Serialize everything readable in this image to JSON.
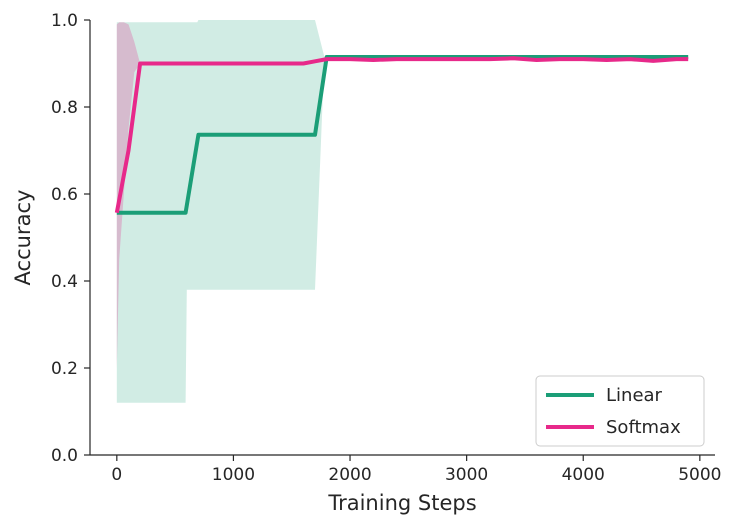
{
  "chart_data": {
    "type": "line",
    "title": "",
    "xlabel": "Training Steps",
    "ylabel": "Accuracy",
    "xlim": [
      -230,
      5130
    ],
    "ylim": [
      0,
      1.0
    ],
    "xticks": [
      0,
      1000,
      2000,
      3000,
      4000,
      5000
    ],
    "xtick_labels": [
      "0",
      "1000",
      "2000",
      "3000",
      "4000",
      "5000"
    ],
    "yticks": [
      0.0,
      0.2,
      0.4,
      0.6,
      0.8,
      1.0
    ],
    "ytick_labels": [
      "0.0",
      "0.2",
      "0.4",
      "0.6",
      "0.8",
      "1.0"
    ],
    "grid": false,
    "legend_position": "lower-right",
    "series": [
      {
        "name": "Linear",
        "color": "#1b9e77",
        "x": [
          0,
          590,
          700,
          1700,
          1800,
          4900
        ],
        "y": [
          0.557,
          0.557,
          0.736,
          0.736,
          0.915,
          0.915
        ],
        "band_x": [
          0,
          590,
          600,
          690,
          700,
          1700,
          1780,
          4900
        ],
        "band_lower": [
          0.12,
          0.12,
          0.38,
          0.38,
          0.38,
          0.38,
          0.915,
          0.915
        ],
        "band_upper": [
          0.995,
          0.995,
          0.995,
          0.995,
          1.0,
          1.0,
          0.915,
          0.915
        ]
      },
      {
        "name": "Softmax",
        "color": "#e7298a",
        "x": [
          0,
          100,
          200,
          400,
          600,
          800,
          1000,
          1200,
          1400,
          1600,
          1700,
          1800,
          2000,
          2200,
          2400,
          2600,
          2800,
          3000,
          3200,
          3400,
          3600,
          3800,
          4000,
          4200,
          4400,
          4600,
          4800,
          4900
        ],
        "y": [
          0.557,
          0.7,
          0.9,
          0.9,
          0.9,
          0.9,
          0.9,
          0.9,
          0.9,
          0.9,
          0.905,
          0.91,
          0.91,
          0.908,
          0.91,
          0.91,
          0.91,
          0.91,
          0.91,
          0.912,
          0.908,
          0.91,
          0.91,
          0.908,
          0.91,
          0.906,
          0.91,
          0.91
        ],
        "band_x": [
          0,
          20,
          60,
          100,
          150,
          200,
          4900
        ],
        "band_lower": [
          0.2,
          0.45,
          0.6,
          0.75,
          0.88,
          0.9,
          0.91
        ],
        "band_upper": [
          0.99,
          0.995,
          0.995,
          0.99,
          0.95,
          0.9,
          0.91
        ]
      }
    ]
  }
}
